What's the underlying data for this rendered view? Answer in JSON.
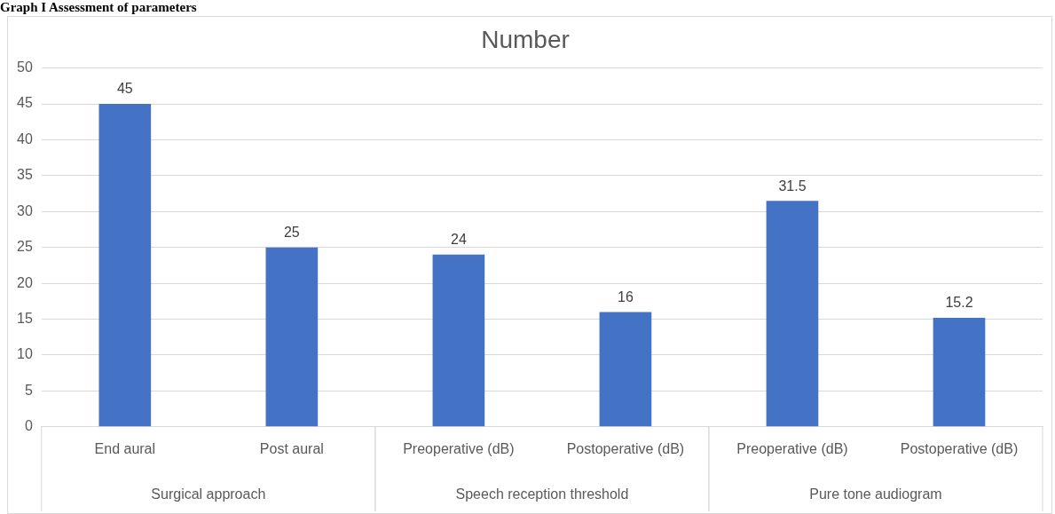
{
  "chart_data": {
    "type": "bar",
    "title": "Graph I Assessment of parameters",
    "subtitle": "Number",
    "categories": [
      "End aural",
      "Post aural",
      "Preoperative (dB)",
      "Postoperative (dB)",
      "Preoperative (dB)",
      "Postoperative (dB)"
    ],
    "values": [
      45,
      25,
      24,
      16,
      31.5,
      15.2
    ],
    "color": "#4472c4",
    "ylim": [
      0,
      50
    ],
    "yticks": [
      0,
      5,
      10,
      15,
      20,
      25,
      30,
      35,
      40,
      45,
      50
    ],
    "grid": "y",
    "legend": false,
    "data_labels": true,
    "annotations": [
      "Surgical approach",
      "Speech reception threshold",
      "Pure tone audiogram"
    ]
  }
}
